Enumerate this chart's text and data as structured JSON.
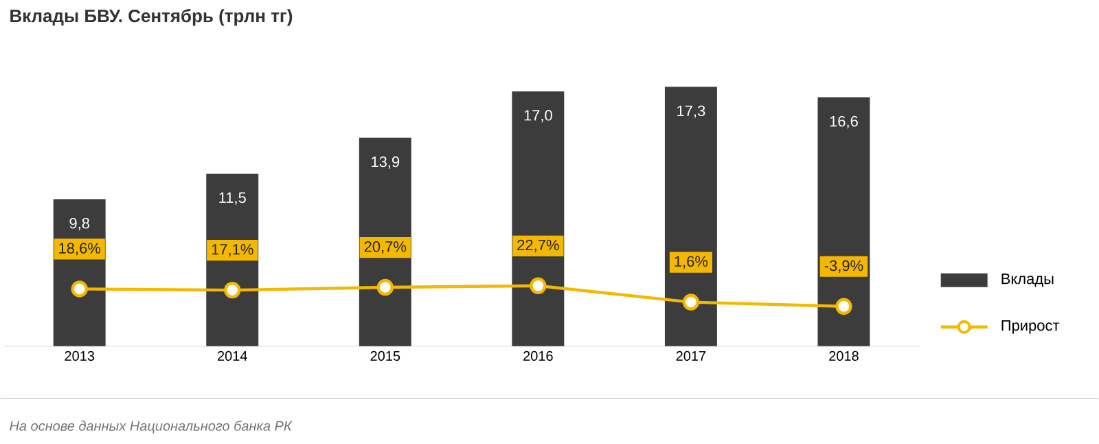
{
  "chart_data": {
    "type": "bar",
    "title": "Вклады БВУ. Сентябрь (трлн тг)",
    "annotations": [
      "На основе данных Национального банка РК"
    ],
    "categories": [
      "2013",
      "2014",
      "2015",
      "2016",
      "2017",
      "2018"
    ],
    "series": [
      {
        "name": "Вклады",
        "color": "#3c3c3c",
        "values": [
          9.8,
          11.5,
          13.9,
          17.0,
          17.3,
          16.6
        ],
        "value_labels": [
          "9,8",
          "11,5",
          "13,9",
          "17,0",
          "17,3",
          "16,6"
        ]
      },
      {
        "name": "Прирост",
        "type": "line",
        "axis": "y2",
        "color": "#f5b800",
        "marker": "circle",
        "values": [
          18.6,
          17.1,
          20.7,
          22.7,
          1.6,
          -3.9
        ],
        "value_labels": [
          "18,6%",
          "17,1%",
          "20,7%",
          "22,7%",
          "1,6%",
          "-3,9%"
        ]
      }
    ],
    "tick_labels": "x",
    "legend": "right"
  }
}
